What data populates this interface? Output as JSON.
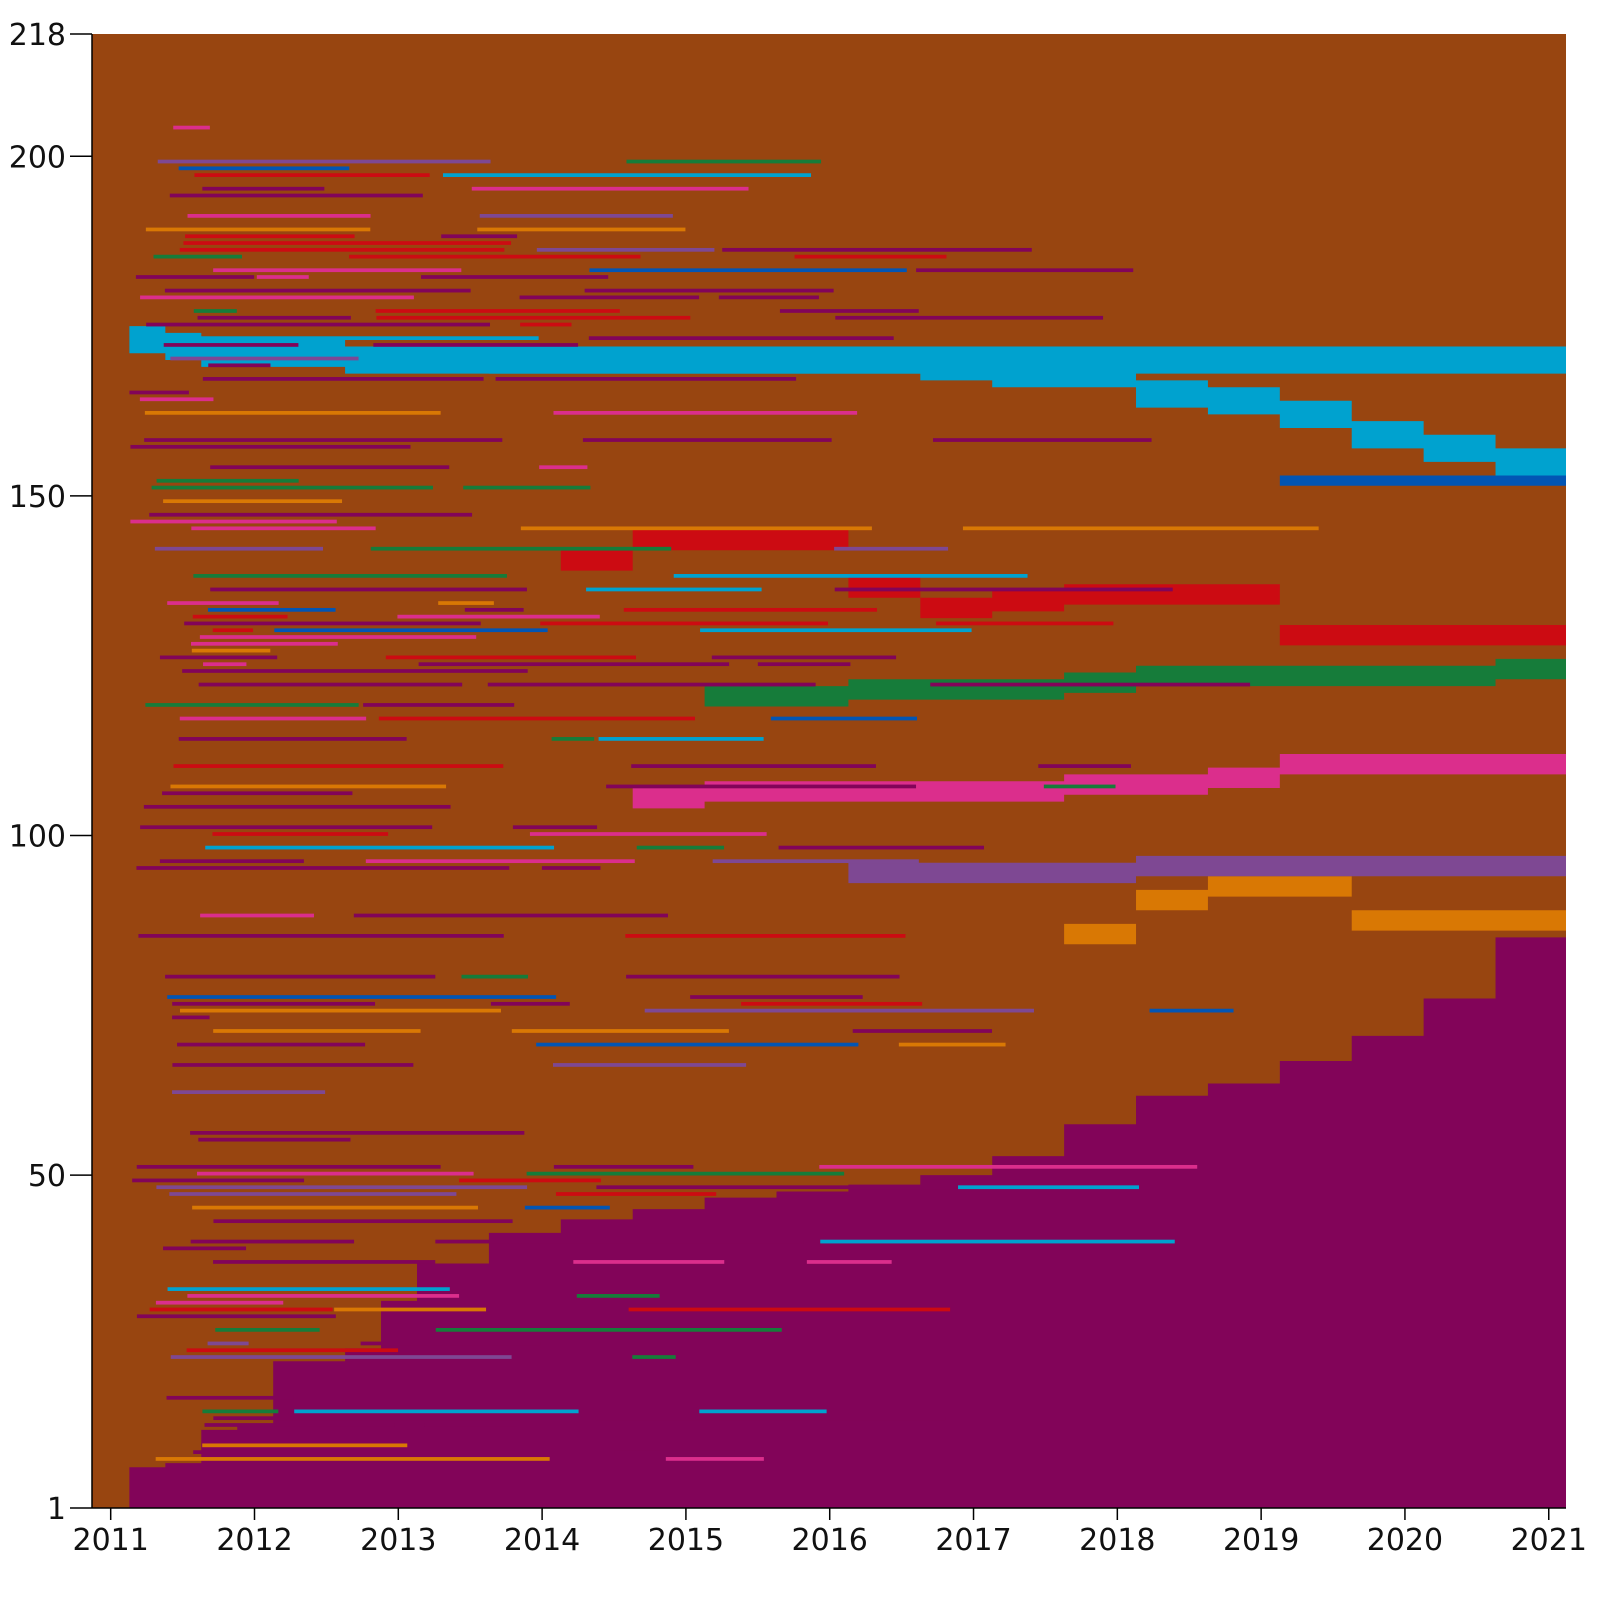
{
  "chart_data": {
    "type": "heatmap",
    "title": "",
    "xlabel": "",
    "ylabel": "",
    "x_ticks": [
      "2011",
      "2012",
      "2013",
      "2014",
      "2015",
      "2016",
      "2017",
      "2018",
      "2019",
      "2020",
      "2021"
    ],
    "x_tick_values": [
      2011.0,
      2012.0,
      2013.0,
      2014.0,
      2015.0,
      2016.0,
      2017.0,
      2018.0,
      2019.0,
      2020.0,
      2021.0
    ],
    "y_ticks": [
      "1",
      "50",
      "100",
      "150",
      "200",
      "218"
    ],
    "y_tick_values": [
      1,
      50,
      100,
      150,
      200,
      218
    ],
    "xlim": [
      2010.87,
      2021.12
    ],
    "ylim": [
      1,
      218
    ],
    "grid": false,
    "legend": "none",
    "colors": {
      "background": "#984510",
      "purple": "#820459",
      "cyan": "#00a2cf",
      "red": "#cc0b12",
      "pink": "#db2e8c",
      "green": "#167c3a",
      "lavender": "#7e4893",
      "orange": "#d97804",
      "blue": "#0255b4",
      "olive": "#7f9d22"
    },
    "bands": [
      {
        "color": "purple",
        "points": [
          [
            2011.13,
            7
          ],
          [
            2011.38,
            7.6
          ],
          [
            2011.63,
            12.5
          ],
          [
            2011.88,
            13.4
          ],
          [
            2012.13,
            22.6
          ],
          [
            2012.63,
            24.5
          ],
          [
            2012.88,
            31.5
          ],
          [
            2013.13,
            37
          ],
          [
            2013.63,
            41.5
          ],
          [
            2014.13,
            43.5
          ],
          [
            2014.63,
            45
          ],
          [
            2015.13,
            46.7
          ],
          [
            2015.63,
            47.6
          ],
          [
            2016.13,
            48.6
          ],
          [
            2016.63,
            50
          ],
          [
            2017.13,
            52.8
          ],
          [
            2017.63,
            57.5
          ],
          [
            2018.13,
            61.7
          ],
          [
            2018.63,
            63.5
          ],
          [
            2019.13,
            66.8
          ],
          [
            2019.63,
            70.5
          ],
          [
            2020.13,
            76
          ],
          [
            2020.63,
            85
          ],
          [
            2021.12,
            88.5
          ]
        ]
      },
      {
        "color": "orange",
        "points": [
          [
            2017.63,
            87
          ],
          [
            2018.13,
            92
          ],
          [
            2018.63,
            94
          ],
          [
            2019.13,
            94
          ],
          [
            2019.63,
            89
          ],
          [
            2020.13,
            89
          ],
          [
            2020.63,
            89
          ],
          [
            2021.12,
            89
          ]
        ]
      },
      {
        "color": "lavender",
        "points": [
          [
            2016.13,
            96
          ],
          [
            2016.63,
            96
          ],
          [
            2017.13,
            96
          ],
          [
            2017.63,
            96
          ],
          [
            2018.13,
            97
          ],
          [
            2018.63,
            97
          ],
          [
            2019.13,
            97
          ],
          [
            2019.63,
            97
          ],
          [
            2020.13,
            97
          ],
          [
            2020.63,
            97
          ],
          [
            2021.12,
            96
          ]
        ]
      },
      {
        "color": "pink",
        "points": [
          [
            2014.63,
            107
          ],
          [
            2015.13,
            108
          ],
          [
            2015.63,
            108
          ],
          [
            2016.13,
            108
          ],
          [
            2016.63,
            108
          ],
          [
            2017.13,
            108
          ],
          [
            2017.63,
            109
          ],
          [
            2018.13,
            109
          ],
          [
            2018.63,
            110
          ],
          [
            2019.13,
            112
          ],
          [
            2019.63,
            112
          ],
          [
            2020.13,
            112
          ],
          [
            2020.63,
            112
          ],
          [
            2021.12,
            117
          ]
        ]
      },
      {
        "color": "green",
        "points": [
          [
            2015.13,
            122
          ],
          [
            2015.63,
            122
          ],
          [
            2016.13,
            123
          ],
          [
            2016.63,
            123
          ],
          [
            2017.13,
            123
          ],
          [
            2017.63,
            124
          ],
          [
            2018.13,
            125
          ],
          [
            2018.63,
            125
          ],
          [
            2019.13,
            125
          ],
          [
            2019.63,
            125
          ],
          [
            2020.13,
            125
          ],
          [
            2020.63,
            126
          ],
          [
            2021.12,
            126
          ]
        ]
      },
      {
        "color": "red",
        "points": [
          [
            2014.13,
            142
          ],
          [
            2014.63,
            145
          ],
          [
            2015.13,
            145
          ],
          [
            2015.63,
            145
          ],
          [
            2016.13,
            138
          ],
          [
            2016.63,
            135
          ],
          [
            2017.13,
            136
          ],
          [
            2017.63,
            137
          ],
          [
            2018.13,
            137
          ],
          [
            2018.63,
            137
          ],
          [
            2019.13,
            131
          ],
          [
            2019.63,
            131
          ],
          [
            2020.13,
            131
          ],
          [
            2020.63,
            131
          ],
          [
            2021.12,
            131
          ]
        ]
      },
      {
        "color": "blue",
        "points": [
          [
            2019.13,
            153
          ],
          [
            2019.63,
            153
          ],
          [
            2020.13,
            153
          ],
          [
            2020.63,
            153
          ],
          [
            2021.12,
            153
          ]
        ]
      },
      {
        "color": "cyan",
        "points": [
          [
            2013.63,
            172
          ],
          [
            2014.13,
            172
          ],
          [
            2014.63,
            172
          ],
          [
            2015.13,
            172
          ],
          [
            2015.63,
            172
          ],
          [
            2016.13,
            172
          ],
          [
            2016.63,
            171
          ],
          [
            2017.13,
            170
          ],
          [
            2017.63,
            170
          ],
          [
            2018.13,
            167
          ],
          [
            2018.63,
            166
          ],
          [
            2019.13,
            164
          ],
          [
            2019.63,
            161
          ],
          [
            2020.13,
            159
          ],
          [
            2020.63,
            157
          ],
          [
            2021.12,
            156
          ]
        ]
      },
      {
        "color": "cyan",
        "points": [
          [
            2011.13,
            175
          ],
          [
            2011.38,
            174
          ],
          [
            2011.63,
            173
          ],
          [
            2011.88,
            173
          ],
          [
            2012.13,
            173
          ],
          [
            2012.63,
            172
          ],
          [
            2013.13,
            172
          ]
        ]
      }
    ]
  }
}
